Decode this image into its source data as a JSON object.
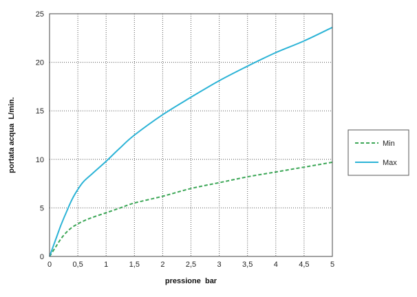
{
  "chart_data": {
    "type": "line",
    "xlabel": "pressione  bar",
    "ylabel": "portata acqua  L/min.",
    "xlim": [
      0,
      5
    ],
    "ylim": [
      0,
      25
    ],
    "x_ticks": [
      0,
      0.5,
      1,
      1.5,
      2,
      2.5,
      3,
      3.5,
      4,
      4.5,
      5
    ],
    "x_tick_labels": [
      "0",
      "0,5",
      "1",
      "1,5",
      "2",
      "2,5",
      "3",
      "3,5",
      "4",
      "4,5",
      "5"
    ],
    "y_ticks": [
      0,
      5,
      10,
      15,
      20,
      25
    ],
    "y_tick_labels": [
      "0",
      "5",
      "10",
      "15",
      "20",
      "25"
    ],
    "grid": true,
    "legend_position": "right",
    "series": [
      {
        "name": "Min",
        "color": "#3aa655",
        "style": "dashed",
        "x": [
          0,
          0.1,
          0.2,
          0.3,
          0.4,
          0.5,
          0.6,
          0.75,
          1.0,
          1.25,
          1.5,
          2.0,
          2.5,
          3.0,
          3.5,
          4.0,
          4.5,
          5.0
        ],
        "y": [
          0,
          0.9,
          1.8,
          2.5,
          3.0,
          3.35,
          3.65,
          4.0,
          4.5,
          5.0,
          5.5,
          6.2,
          7.0,
          7.6,
          8.2,
          8.7,
          9.2,
          9.7
        ]
      },
      {
        "name": "Max",
        "color": "#2bb3d6",
        "style": "solid",
        "x": [
          0,
          0.1,
          0.2,
          0.3,
          0.4,
          0.5,
          0.6,
          0.75,
          1.0,
          1.25,
          1.5,
          2.0,
          2.5,
          3.0,
          3.5,
          4.0,
          4.5,
          5.0
        ],
        "y": [
          0,
          1.6,
          3.2,
          4.6,
          5.9,
          6.9,
          7.7,
          8.5,
          9.8,
          11.2,
          12.5,
          14.6,
          16.4,
          18.1,
          19.6,
          21.0,
          22.2,
          23.6
        ]
      }
    ]
  }
}
